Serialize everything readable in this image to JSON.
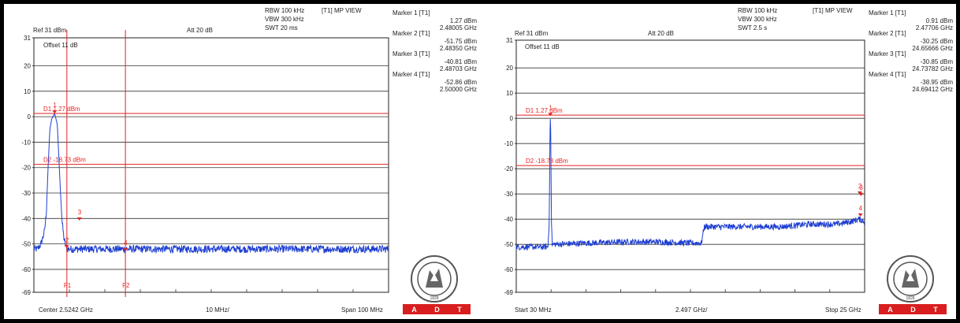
{
  "chart_data": [
    {
      "type": "line",
      "title": "",
      "header": {
        "ref_label": "Ref 31 dBm",
        "att_label": "Att 20 dB",
        "offset_label": "Offset 11 dB",
        "rbw_label": "RBW 100 kHz",
        "vbw_label": "VBW 300 kHz",
        "swt_label": "SWT 20 ms",
        "view_label": "[T1] MP VIEW"
      },
      "yticks": [
        "31",
        "20",
        "10",
        "0",
        "-10",
        "-20",
        "-30",
        "-40",
        "-50",
        "-60",
        "-69"
      ],
      "ylim": [
        -69,
        31
      ],
      "xlim": [
        2.4742,
        2.5742
      ],
      "x_unit": "GHz",
      "y_unit": "dBm",
      "bottom_labels": {
        "left": "Center 2.5242 GHz",
        "middle": "10 MHz/",
        "right": "Span 100 MHz"
      },
      "display_lines": [
        {
          "name": "D1 1.27 dBm",
          "y": 1.27
        },
        {
          "name": "D2 -18.73 dBm",
          "y": -18.73
        }
      ],
      "freq_lines": [
        {
          "name": "F1",
          "x": 2.4835
        },
        {
          "name": "F2",
          "x": 2.5
        }
      ],
      "markers_text": [
        {
          "title": "Marker 1 [T1]",
          "level": "1.27 dBm",
          "freq": "2.48005 GHz"
        },
        {
          "title": "Marker 2 [T1]",
          "level": "-51.75 dBm",
          "freq": "2.48350 GHz"
        },
        {
          "title": "Marker 3 [T1]",
          "level": "-40.81 dBm",
          "freq": "2.48703 GHz"
        },
        {
          "title": "Marker 4 [T1]",
          "level": "-52.86 dBm",
          "freq": "2.50000 GHz"
        }
      ],
      "marker_points": [
        {
          "label": "1",
          "x": 2.48005,
          "y": 1.27
        },
        {
          "label": "2",
          "x": 2.4835,
          "y": -51.75
        },
        {
          "label": "3",
          "x": 2.48703,
          "y": -40.81
        },
        {
          "label": "4",
          "x": 2.5,
          "y": -52.86
        }
      ],
      "series": [
        {
          "color": "#1f3fd1",
          "noise_floor": -53,
          "noise_amplitude": 1.5,
          "shape": [
            [
              2.4742,
              -52
            ],
            [
              2.4752,
              -52
            ],
            [
              2.4762,
              -50
            ],
            [
              2.4772,
              -45
            ],
            [
              2.4777,
              -38
            ],
            [
              2.4782,
              -20
            ],
            [
              2.4787,
              -5
            ],
            [
              2.4792,
              -1
            ],
            [
              2.48005,
              1.27
            ],
            [
              2.4808,
              -3
            ],
            [
              2.4812,
              -15
            ],
            [
              2.4817,
              -30
            ],
            [
              2.4822,
              -42
            ],
            [
              2.4827,
              -48
            ],
            [
              2.4832,
              -51
            ],
            [
              2.4835,
              -52
            ],
            [
              2.487,
              -52
            ],
            [
              2.5742,
              -52
            ]
          ]
        }
      ]
    },
    {
      "type": "line",
      "title": "",
      "header": {
        "ref_label": "Ref 31 dBm",
        "att_label": "Att 20 dB",
        "offset_label": "Offset 11 dB",
        "rbw_label": "RBW 100 kHz",
        "vbw_label": "VBW 300 kHz",
        "swt_label": "SWT 2.5 s",
        "view_label": "[T1] MP VIEW"
      },
      "yticks": [
        "31",
        "20",
        "10",
        "0",
        "-10",
        "-20",
        "-30",
        "-40",
        "-50",
        "-60",
        "-69"
      ],
      "ylim": [
        -69,
        31
      ],
      "xlim": [
        0.03,
        25.0
      ],
      "x_unit": "GHz",
      "y_unit": "dBm",
      "bottom_labels": {
        "left": "Start 30 MHz",
        "middle": "2.497 GHz/",
        "right": "Stop 25 GHz"
      },
      "display_lines": [
        {
          "name": "D1 1.27 dBm",
          "y": 1.27
        },
        {
          "name": "D2 -18.73 dBm",
          "y": -18.73
        }
      ],
      "freq_lines": [],
      "markers_text": [
        {
          "title": "Marker 1 [T1]",
          "level": "0.91 dBm",
          "freq": "2.47706 GHz"
        },
        {
          "title": "Marker 2 [T1]",
          "level": "-30.25 dBm",
          "freq": "24.65666 GHz"
        },
        {
          "title": "Marker 3 [T1]",
          "level": "-30.85 dBm",
          "freq": "24.73782 GHz"
        },
        {
          "title": "Marker 4 [T1]",
          "level": "-38.95 dBm",
          "freq": "24.69412 GHz"
        }
      ],
      "marker_points": [
        {
          "label": "1",
          "x": 2.47706,
          "y": 0.91
        },
        {
          "label": "2",
          "x": 24.65666,
          "y": -30.25
        },
        {
          "label": "3",
          "x": 24.73782,
          "y": -30.85
        },
        {
          "label": "4",
          "x": 24.69412,
          "y": -38.95
        }
      ],
      "series": [
        {
          "color": "#1f3fd1",
          "noise_floor": -50,
          "noise_amplitude": 1.2,
          "shape": [
            [
              0.03,
              -51
            ],
            [
              1.5,
              -51
            ],
            [
              2.3,
              -51
            ],
            [
              2.4,
              -40
            ],
            [
              2.45,
              -5
            ],
            [
              2.477,
              0.91
            ],
            [
              2.5,
              -5
            ],
            [
              2.55,
              -40
            ],
            [
              2.6,
              -50
            ],
            [
              5.0,
              -49.5
            ],
            [
              8.0,
              -49
            ],
            [
              10.0,
              -49
            ],
            [
              12.5,
              -49.5
            ],
            [
              13.3,
              -49.5
            ],
            [
              13.5,
              -43
            ],
            [
              15.0,
              -43
            ],
            [
              17.0,
              -43
            ],
            [
              19.0,
              -43
            ],
            [
              21.0,
              -42
            ],
            [
              23.0,
              -42
            ],
            [
              24.0,
              -41
            ],
            [
              24.6,
              -40
            ],
            [
              25.0,
              -41
            ]
          ]
        }
      ]
    }
  ],
  "adt_letters": [
    "A",
    "D",
    "T"
  ],
  "bureau_veritas": {
    "year": "1828"
  },
  "colors": {
    "trace": "#1f3fd1",
    "red": "#e22222",
    "grid": "#333333",
    "adt_bg": "#d81e1e"
  }
}
